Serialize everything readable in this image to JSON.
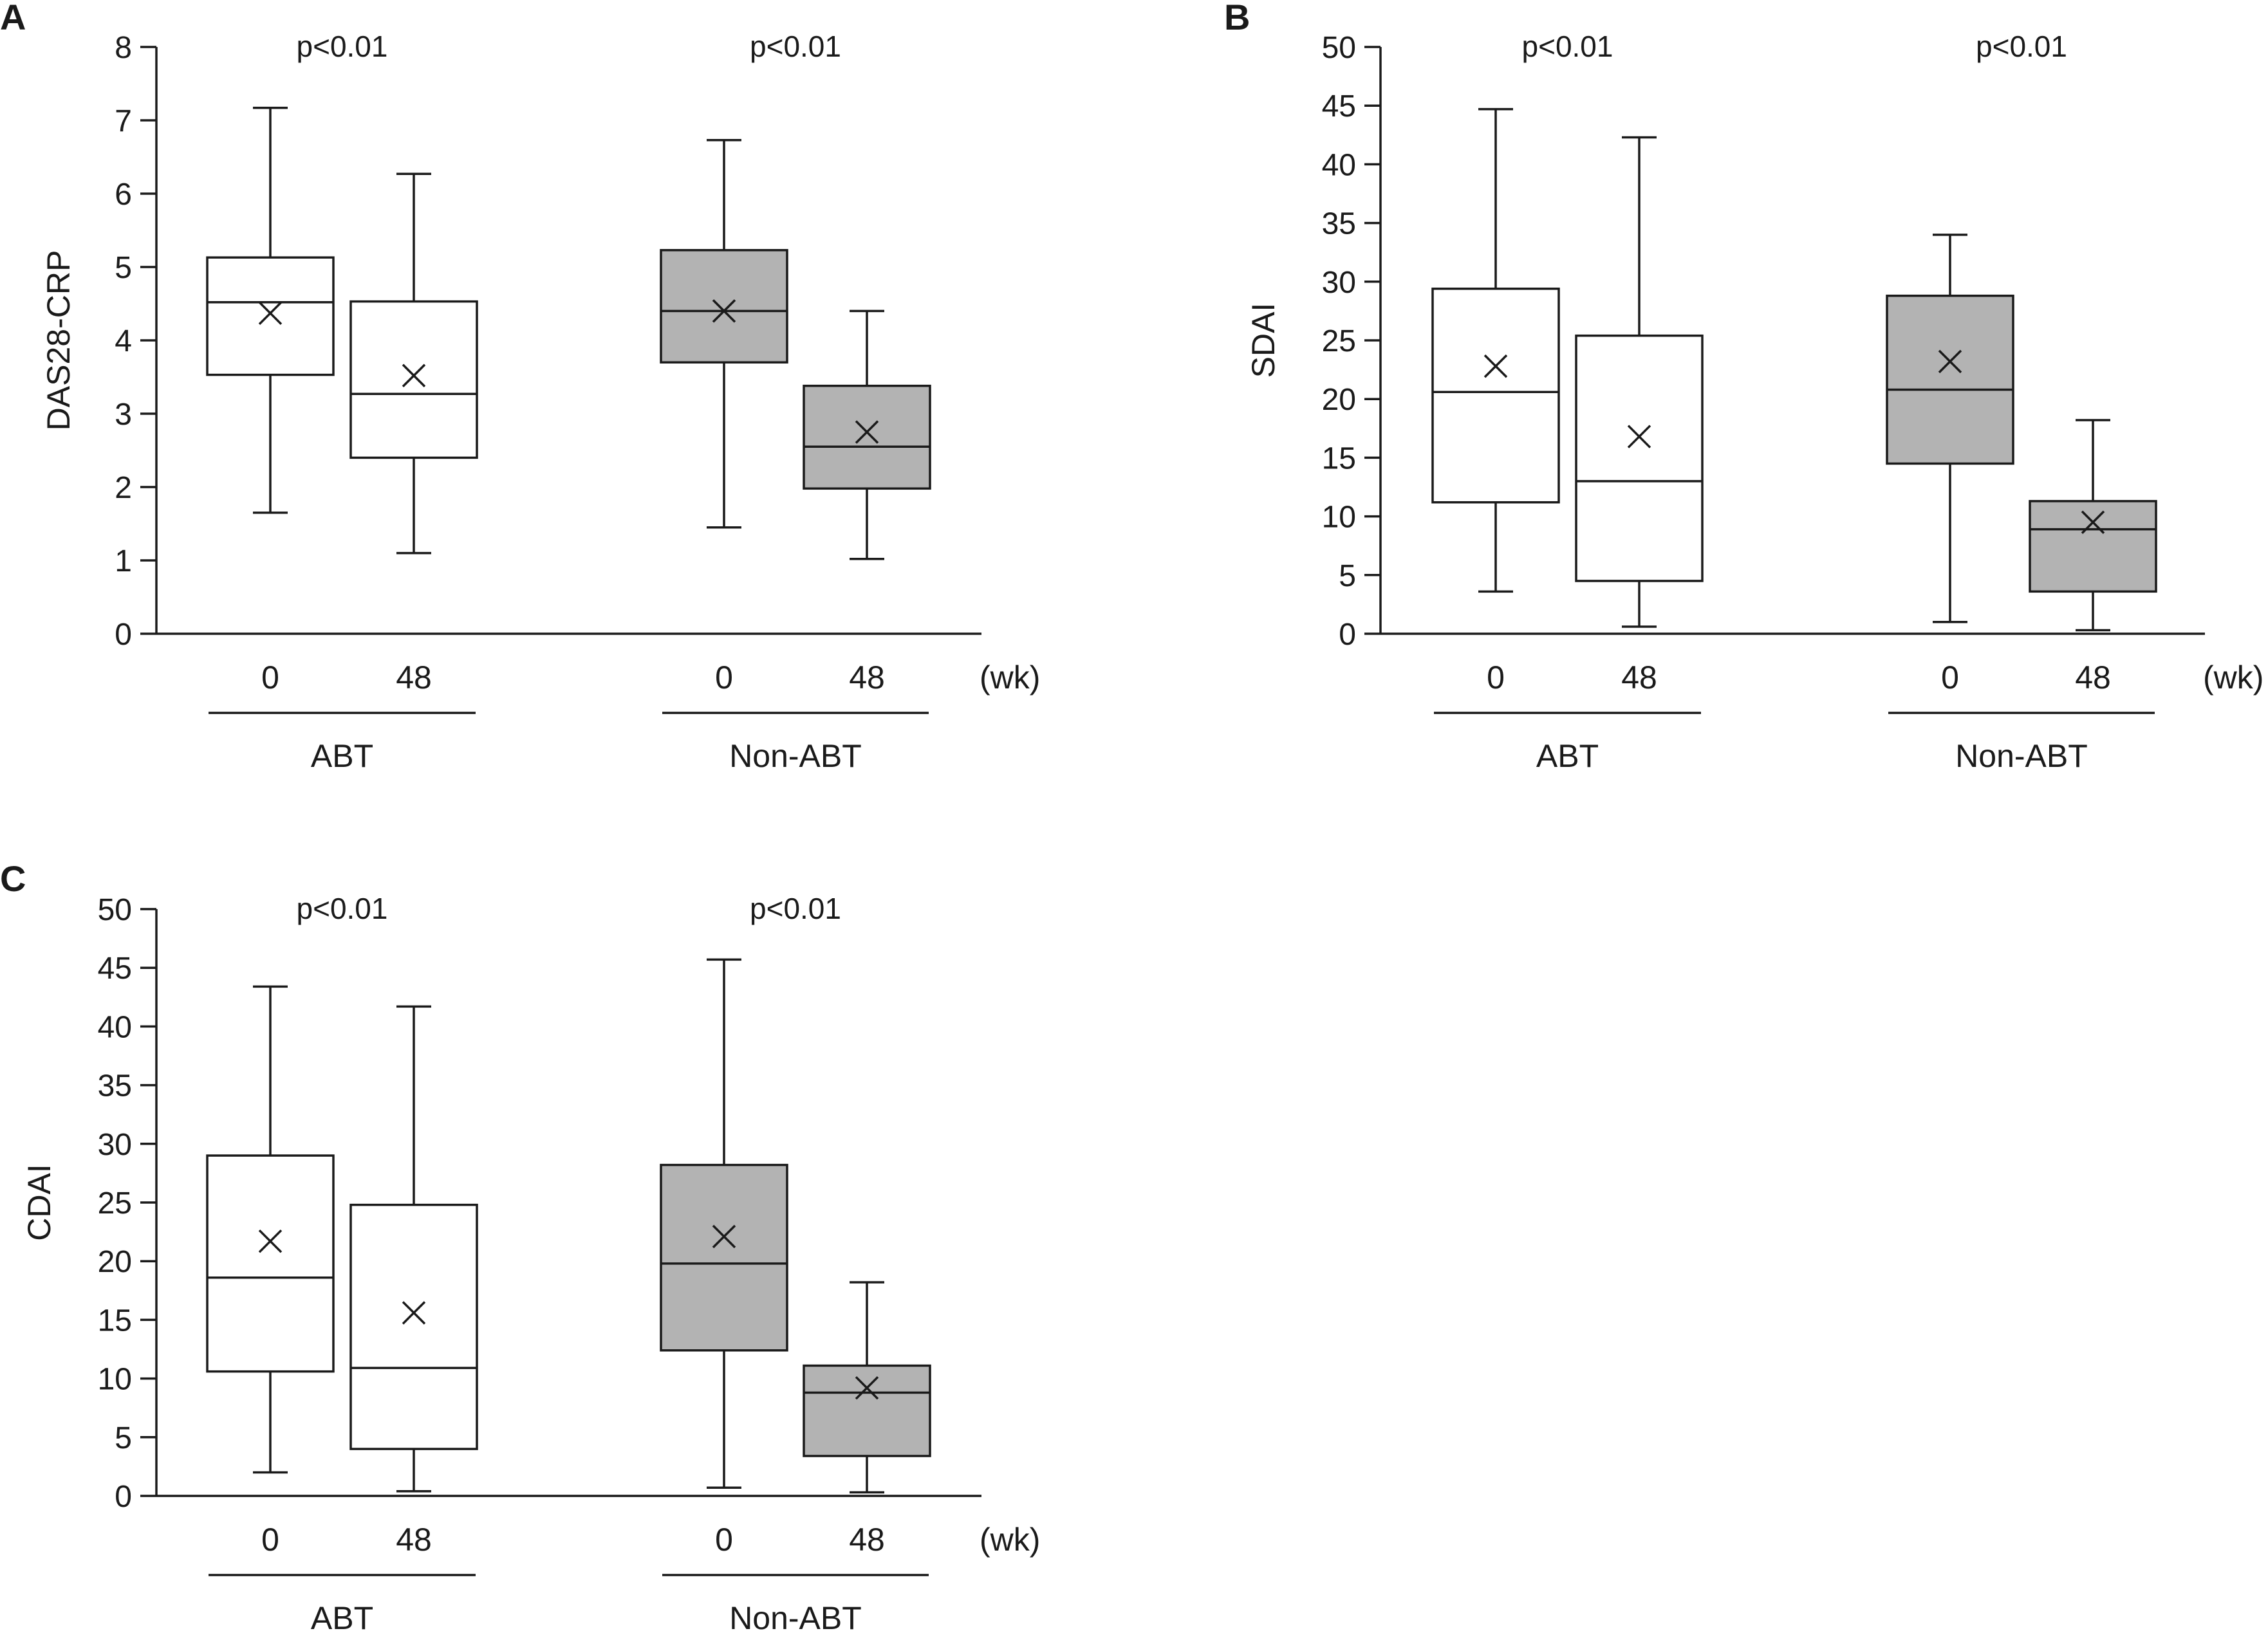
{
  "figure": {
    "background": "#ffffff"
  },
  "colors": {
    "line": "#1a1a1a",
    "fill_abt": "#ffffff",
    "fill_non_abt": "#b3b3b3"
  },
  "chart_data": [
    {
      "panel": "A",
      "type": "box",
      "ylabel": "DAS28-CRP",
      "ylim": [
        0,
        8
      ],
      "yticks": [
        0,
        1,
        2,
        3,
        4,
        5,
        6,
        7,
        8
      ],
      "x_unit": "(wk)",
      "groups": [
        {
          "name": "ABT",
          "pvalue": "p<0.01",
          "fill": "#ffffff",
          "boxes": [
            {
              "label": "0",
              "min": 1.65,
              "q1": 3.53,
              "median": 4.52,
              "q3": 5.13,
              "max": 7.17,
              "mean": 4.37
            },
            {
              "label": "48",
              "min": 1.1,
              "q1": 2.4,
              "median": 3.27,
              "q3": 4.53,
              "max": 6.27,
              "mean": 3.52
            }
          ]
        },
        {
          "name": "Non-ABT",
          "pvalue": "p<0.01",
          "fill": "#b3b3b3",
          "boxes": [
            {
              "label": "0",
              "min": 1.45,
              "q1": 3.7,
              "median": 4.4,
              "q3": 5.23,
              "max": 6.73,
              "mean": 4.4
            },
            {
              "label": "48",
              "min": 1.02,
              "q1": 1.98,
              "median": 2.55,
              "q3": 3.38,
              "max": 4.4,
              "mean": 2.75
            }
          ]
        }
      ]
    },
    {
      "panel": "B",
      "type": "box",
      "ylabel": "SDAI",
      "ylim": [
        0,
        50
      ],
      "yticks": [
        0,
        5,
        10,
        15,
        20,
        25,
        30,
        35,
        40,
        45,
        50
      ],
      "x_unit": "(wk)",
      "groups": [
        {
          "name": "ABT",
          "pvalue": "p<0.01",
          "fill": "#ffffff",
          "boxes": [
            {
              "label": "0",
              "min": 3.6,
              "q1": 11.2,
              "median": 20.6,
              "q3": 29.4,
              "max": 44.7,
              "mean": 22.8
            },
            {
              "label": "48",
              "min": 0.6,
              "q1": 4.5,
              "median": 13.0,
              "q3": 25.4,
              "max": 42.3,
              "mean": 16.8
            }
          ]
        },
        {
          "name": "Non-ABT",
          "pvalue": "p<0.01",
          "fill": "#b3b3b3",
          "boxes": [
            {
              "label": "0",
              "min": 1.0,
              "q1": 14.5,
              "median": 20.8,
              "q3": 28.8,
              "max": 34.0,
              "mean": 23.2
            },
            {
              "label": "48",
              "min": 0.3,
              "q1": 3.6,
              "median": 8.9,
              "q3": 11.3,
              "max": 18.2,
              "mean": 9.5
            }
          ]
        }
      ]
    },
    {
      "panel": "C",
      "type": "box",
      "ylabel": "CDAI",
      "ylim": [
        0,
        50
      ],
      "yticks": [
        0,
        5,
        10,
        15,
        20,
        25,
        30,
        35,
        40,
        45,
        50
      ],
      "x_unit": "(wk)",
      "groups": [
        {
          "name": "ABT",
          "pvalue": "p<0.01",
          "fill": "#ffffff",
          "boxes": [
            {
              "label": "0",
              "min": 2.0,
              "q1": 10.6,
              "median": 18.6,
              "q3": 29.0,
              "max": 43.4,
              "mean": 21.7
            },
            {
              "label": "48",
              "min": 0.4,
              "q1": 4.0,
              "median": 10.9,
              "q3": 24.8,
              "max": 41.7,
              "mean": 15.6
            }
          ]
        },
        {
          "name": "Non-ABT",
          "pvalue": "p<0.01",
          "fill": "#b3b3b3",
          "boxes": [
            {
              "label": "0",
              "min": 0.7,
              "q1": 12.4,
              "median": 19.8,
              "q3": 28.2,
              "max": 45.7,
              "mean": 22.1
            },
            {
              "label": "48",
              "min": 0.3,
              "q1": 3.4,
              "median": 8.8,
              "q3": 11.1,
              "max": 18.2,
              "mean": 9.2
            }
          ]
        }
      ]
    }
  ]
}
